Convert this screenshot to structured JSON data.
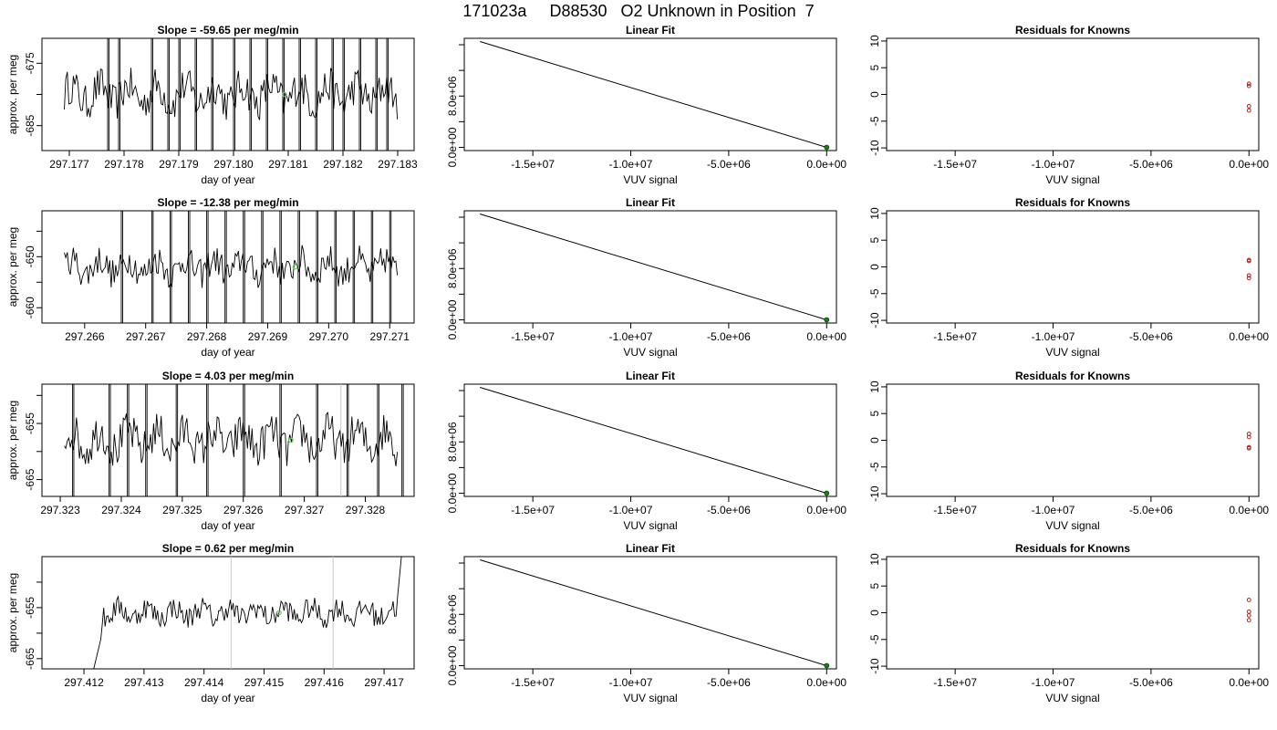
{
  "page_title": "171023a     D88530   O2 Unknown in Position  7",
  "chart_data": [
    {
      "row": 1,
      "panel": "time_series",
      "type": "line",
      "title": "Slope =  -59.65  per meg/min",
      "xlabel": "day of year",
      "ylabel": "approx. per meg",
      "xlim": [
        297.1765,
        297.1833
      ],
      "ylim": [
        -689,
        -671
      ],
      "xticks": [
        "297.177",
        "297.178",
        "297.179",
        "297.180",
        "297.181",
        "297.182",
        "297.183"
      ],
      "yticks": [
        "-675",
        "-685"
      ],
      "spikes_x": [
        297.1777,
        297.1779,
        297.1785,
        297.1788,
        297.179,
        297.1793,
        297.1796,
        297.18,
        297.1803,
        297.1806,
        297.1809,
        297.1812,
        297.1815,
        297.1818,
        297.182,
        297.1823,
        297.1826,
        297.1828
      ],
      "marker": {
        "x": 297.18093,
        "y": -680,
        "color": "#5ad15a"
      },
      "vlines": []
    },
    {
      "row": 1,
      "panel": "linear_fit",
      "type": "line",
      "title": "Linear Fit",
      "xlabel": "VUV signal",
      "ylabel": "",
      "xlim": [
        -18500000,
        500000
      ],
      "ylim": [
        -500000,
        17000000
      ],
      "xticks": [
        "-1.5e+07",
        "-1.0e+07",
        "-5.0e+06",
        "0.0e+00"
      ],
      "yticks": [
        "0.0e+00",
        "8.0e+06"
      ],
      "line": [
        [
          -17700000,
          16500000
        ],
        [
          0,
          0
        ]
      ],
      "point": {
        "x": 0,
        "y": 0,
        "color": "#1c7a1c"
      }
    },
    {
      "row": 1,
      "panel": "residuals",
      "type": "scatter",
      "title": "Residuals for Knowns",
      "xlabel": "VUV signal",
      "ylabel": "",
      "xlim": [
        -18500000,
        500000
      ],
      "ylim": [
        -10.5,
        10.5
      ],
      "xticks": [
        "-1.5e+07",
        "-1.0e+07",
        "-5.0e+06",
        "0.0e+00"
      ],
      "yticks": [
        "-10",
        "-5",
        "0",
        "5",
        "10"
      ],
      "points_y": [
        2.0,
        1.6,
        -2.2,
        -3.0
      ],
      "point_color": "#b22222"
    },
    {
      "row": 2,
      "panel": "time_series",
      "type": "line",
      "title": "Slope =  -12.38  per meg/min",
      "xlabel": "day of year",
      "ylabel": "approx. per meg",
      "xlim": [
        297.2653,
        297.2714
      ],
      "ylim": [
        -663,
        -641
      ],
      "xticks": [
        "297.266",
        "297.267",
        "297.268",
        "297.269",
        "297.270",
        "297.271"
      ],
      "yticks": [
        "-650",
        "-660"
      ],
      "spikes_x": [
        297.2666,
        297.2671,
        297.2674,
        297.2677,
        297.268,
        297.2683,
        297.2686,
        297.2689,
        297.2692,
        297.2695,
        297.2698,
        297.2701,
        297.2704,
        297.2707,
        297.271
      ],
      "marker": {
        "x": 297.26945,
        "y": -652,
        "color": "#5ad15a"
      },
      "vlines": []
    },
    {
      "row": 2,
      "panel": "linear_fit",
      "type": "line",
      "title": "Linear Fit",
      "xlabel": "VUV signal",
      "ylabel": "",
      "xlim": [
        -18500000,
        500000
      ],
      "ylim": [
        -500000,
        17000000
      ],
      "xticks": [
        "-1.5e+07",
        "-1.0e+07",
        "-5.0e+06",
        "0.0e+00"
      ],
      "yticks": [
        "0.0e+00",
        "8.0e+06"
      ],
      "line": [
        [
          -17700000,
          16500000
        ],
        [
          0,
          0
        ]
      ],
      "point": {
        "x": 0,
        "y": 0,
        "color": "#1c7a1c"
      }
    },
    {
      "row": 2,
      "panel": "residuals",
      "type": "scatter",
      "title": "Residuals for Knowns",
      "xlabel": "VUV signal",
      "ylabel": "",
      "xlim": [
        -18500000,
        500000
      ],
      "ylim": [
        -10.5,
        10.5
      ],
      "xticks": [
        "-1.5e+07",
        "-1.0e+07",
        "-5.0e+06",
        "0.0e+00"
      ],
      "yticks": [
        "-10",
        "-5",
        "0",
        "5",
        "10"
      ],
      "points_y": [
        1.3,
        1.1,
        -1.6,
        -2.1
      ],
      "point_color": "#b22222"
    },
    {
      "row": 3,
      "panel": "time_series",
      "type": "line",
      "title": "Slope =  4.03  per meg/min",
      "xlabel": "day of year",
      "ylabel": "approx. per meg",
      "xlim": [
        297.3227,
        297.3288
      ],
      "ylim": [
        -668,
        -648
      ],
      "xticks": [
        "297.323",
        "297.324",
        "297.325",
        "297.326",
        "297.327",
        "297.328"
      ],
      "yticks": [
        "-655",
        "-665"
      ],
      "spikes_x": [
        297.3232,
        297.3238,
        297.3241,
        297.3244,
        297.3249,
        297.3254,
        297.326,
        297.3266,
        297.3272,
        297.3277,
        297.3282,
        297.3286
      ],
      "marker": {
        "x": 297.32678,
        "y": -658,
        "color": "#5ad15a"
      },
      "vlines": [
        297.3276
      ]
    },
    {
      "row": 3,
      "panel": "linear_fit",
      "type": "line",
      "title": "Linear Fit",
      "xlabel": "VUV signal",
      "ylabel": "",
      "xlim": [
        -18500000,
        500000
      ],
      "ylim": [
        -500000,
        17000000
      ],
      "xticks": [
        "-1.5e+07",
        "-1.0e+07",
        "-5.0e+06",
        "0.0e+00"
      ],
      "yticks": [
        "0.0e+00",
        "8.0e+06"
      ],
      "line": [
        [
          -17700000,
          16500000
        ],
        [
          0,
          0
        ]
      ],
      "point": {
        "x": 0,
        "y": 0,
        "color": "#1c7a1c"
      }
    },
    {
      "row": 3,
      "panel": "residuals",
      "type": "scatter",
      "title": "Residuals for Knowns",
      "xlabel": "VUV signal",
      "ylabel": "",
      "xlim": [
        -18500000,
        500000
      ],
      "ylim": [
        -10.5,
        10.5
      ],
      "xticks": [
        "-1.5e+07",
        "-1.0e+07",
        "-5.0e+06",
        "0.0e+00"
      ],
      "yticks": [
        "-10",
        "-5",
        "0",
        "5",
        "10"
      ],
      "points_y": [
        1.2,
        0.6,
        -1.3,
        -1.5
      ],
      "point_color": "#b22222"
    },
    {
      "row": 4,
      "panel": "time_series",
      "type": "line",
      "title": "Slope =  0.62  per meg/min",
      "xlabel": "day of year",
      "ylabel": "approx. per meg",
      "xlim": [
        297.4113,
        297.4175
      ],
      "ylim": [
        -667,
        -645
      ],
      "xticks": [
        "297.412",
        "297.413",
        "297.414",
        "297.415",
        "297.416",
        "297.417"
      ],
      "yticks": [
        "-655",
        "-665"
      ],
      "spikes_x": [],
      "marker": {
        "x": 297.41525,
        "y": -656,
        "color": "#5ad15a"
      },
      "vlines": [
        297.41445,
        297.41615
      ]
    },
    {
      "row": 4,
      "panel": "linear_fit",
      "type": "line",
      "title": "Linear Fit",
      "xlabel": "VUV signal",
      "ylabel": "",
      "xlim": [
        -18500000,
        500000
      ],
      "ylim": [
        -500000,
        17000000
      ],
      "xticks": [
        "-1.5e+07",
        "-1.0e+07",
        "-5.0e+06",
        "0.0e+00"
      ],
      "yticks": [
        "0.0e+00",
        "8.0e+06"
      ],
      "line": [
        [
          -17700000,
          16500000
        ],
        [
          0,
          0
        ]
      ],
      "point": {
        "x": 0,
        "y": 0,
        "color": "#1c7a1c"
      }
    },
    {
      "row": 4,
      "panel": "residuals",
      "type": "scatter",
      "title": "Residuals for Knowns",
      "xlabel": "VUV signal",
      "ylabel": "",
      "xlim": [
        -18500000,
        500000
      ],
      "ylim": [
        -10.5,
        10.5
      ],
      "xticks": [
        "-1.5e+07",
        "-1.0e+07",
        "-5.0e+06",
        "0.0e+00"
      ],
      "yticks": [
        "-10",
        "-5",
        "0",
        "5",
        "10"
      ],
      "points_y": [
        2.4,
        0.2,
        -0.5,
        -1.4
      ],
      "point_color": "#b22222"
    }
  ]
}
